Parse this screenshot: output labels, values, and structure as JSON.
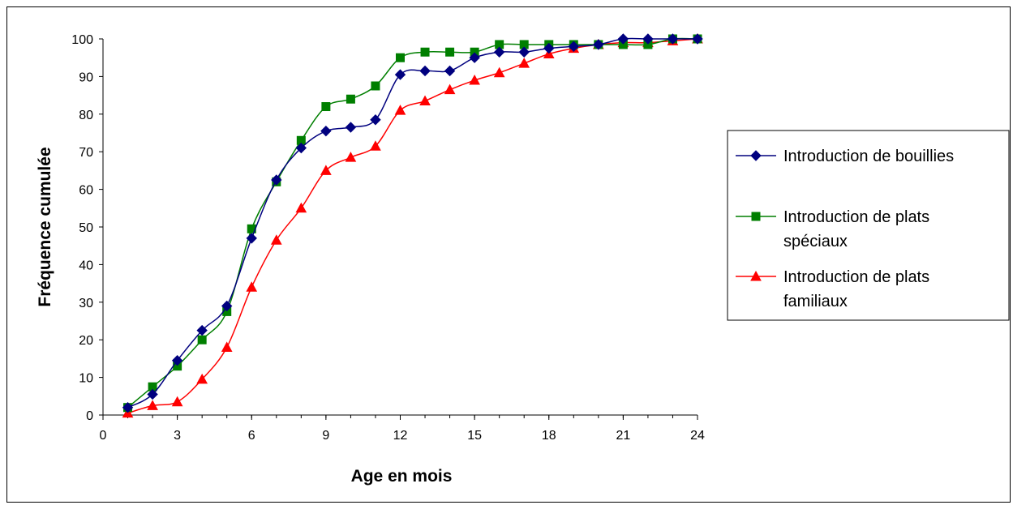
{
  "chart_data": {
    "type": "line",
    "title": "",
    "xlabel": "Age en mois",
    "ylabel": "Fréquence cumulée",
    "xlim": [
      0,
      24
    ],
    "ylim": [
      0,
      100
    ],
    "xticks": [
      0,
      3,
      6,
      9,
      12,
      15,
      18,
      21,
      24
    ],
    "yticks": [
      0,
      10,
      20,
      30,
      40,
      50,
      60,
      70,
      80,
      90,
      100
    ],
    "grid": false,
    "legend_position": "right",
    "x": [
      1,
      2,
      3,
      4,
      5,
      6,
      7,
      8,
      9,
      10,
      11,
      12,
      13,
      14,
      15,
      16,
      17,
      18,
      19,
      20,
      21,
      22,
      23,
      24
    ],
    "series": [
      {
        "name": "Introduction de bouillies",
        "color": "#00007f",
        "marker": "diamond",
        "values": [
          2,
          5.5,
          14.5,
          22.5,
          29,
          47,
          62.5,
          71,
          75.5,
          76.5,
          78.5,
          90.5,
          91.5,
          91.5,
          95,
          96.5,
          96.5,
          97.5,
          98,
          98.5,
          100,
          100,
          100,
          100
        ]
      },
      {
        "name": "Introduction de plats spéciaux",
        "legend_lines": [
          "Introduction de plats",
          "spéciaux"
        ],
        "color": "#007f00",
        "marker": "square",
        "values": [
          2,
          7.5,
          13,
          20,
          27.5,
          49.5,
          62,
          73,
          82,
          84,
          87.5,
          95,
          96.5,
          96.5,
          96.5,
          98.5,
          98.5,
          98.5,
          98.5,
          98.5,
          98.5,
          98.5,
          100,
          100
        ]
      },
      {
        "name": "Introduction de plats familiaux",
        "legend_lines": [
          "Introduction de plats",
          "familiaux"
        ],
        "color": "#ff0000",
        "marker": "triangle",
        "values": [
          0.5,
          2.5,
          3.5,
          9.5,
          18,
          34,
          46.5,
          55,
          65,
          68.5,
          71.5,
          81,
          83.5,
          86.5,
          89,
          91,
          93.5,
          96,
          97.5,
          98.5,
          99,
          99,
          99.5,
          100
        ]
      }
    ]
  }
}
